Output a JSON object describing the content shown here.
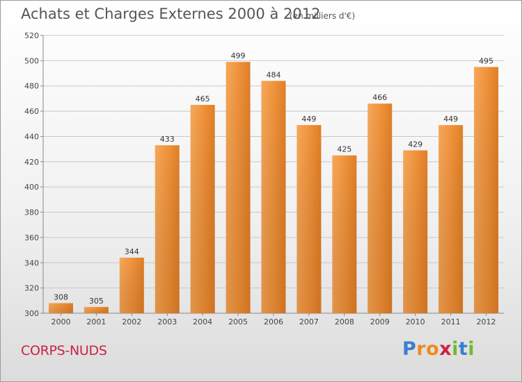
{
  "chart_data": {
    "type": "bar",
    "title": "Achats et Charges Externes 2000 à 2012",
    "subtitle": "(en milliers d'€)",
    "categories": [
      "2000",
      "2001",
      "2002",
      "2003",
      "2004",
      "2005",
      "2006",
      "2007",
      "2008",
      "2009",
      "2010",
      "2011",
      "2012"
    ],
    "values": [
      308,
      305,
      344,
      433,
      465,
      499,
      484,
      449,
      425,
      466,
      429,
      449,
      495
    ],
    "ylim": [
      300,
      520
    ],
    "yticks": [
      300,
      320,
      340,
      360,
      380,
      400,
      420,
      440,
      460,
      480,
      500,
      520
    ],
    "grid": true,
    "bar_color": "#f0943a"
  },
  "location": "CORPS-NUDS",
  "logo": {
    "text": "Proxiti"
  }
}
